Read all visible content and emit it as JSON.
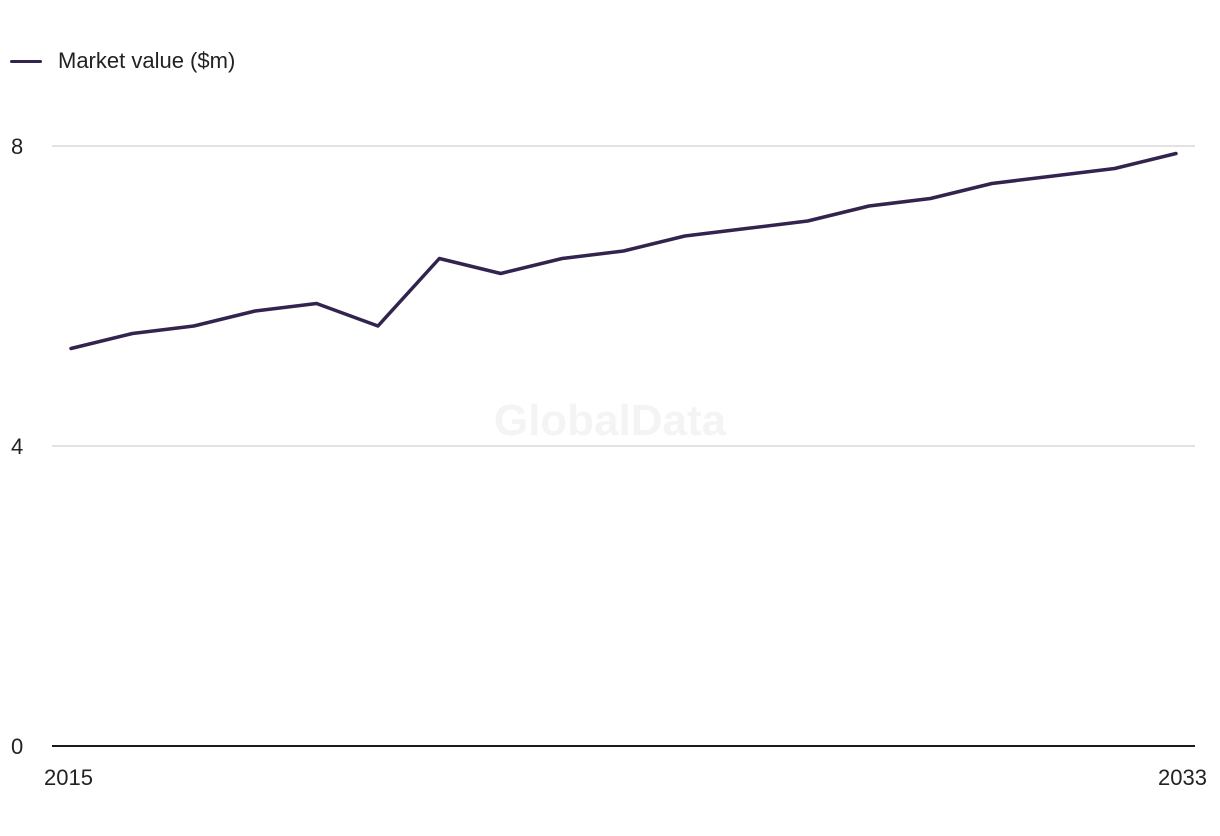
{
  "legend": {
    "label": "Market value ($m)"
  },
  "watermark": "GlobalData",
  "colors": {
    "series": "#33234f",
    "grid": "#d9d9d9",
    "axis": "#1a1a1a"
  },
  "chart_data": {
    "type": "line",
    "title": "",
    "xlabel": "",
    "ylabel": "",
    "x": [
      2015,
      2016,
      2017,
      2018,
      2019,
      2020,
      2021,
      2022,
      2023,
      2024,
      2025,
      2026,
      2027,
      2028,
      2029,
      2030,
      2031,
      2032,
      2033
    ],
    "series": [
      {
        "name": "Market value ($m)",
        "values": [
          5.3,
          5.5,
          5.6,
          5.8,
          5.9,
          5.6,
          6.5,
          6.3,
          6.5,
          6.6,
          6.8,
          6.9,
          7.0,
          7.2,
          7.3,
          7.5,
          7.6,
          7.7,
          7.9
        ]
      }
    ],
    "ylim": [
      0,
      8
    ],
    "yticks": [
      0,
      4,
      8
    ],
    "xtick_labels": [
      "2015",
      "2033"
    ],
    "grid": true,
    "legend_position": "top-left"
  }
}
